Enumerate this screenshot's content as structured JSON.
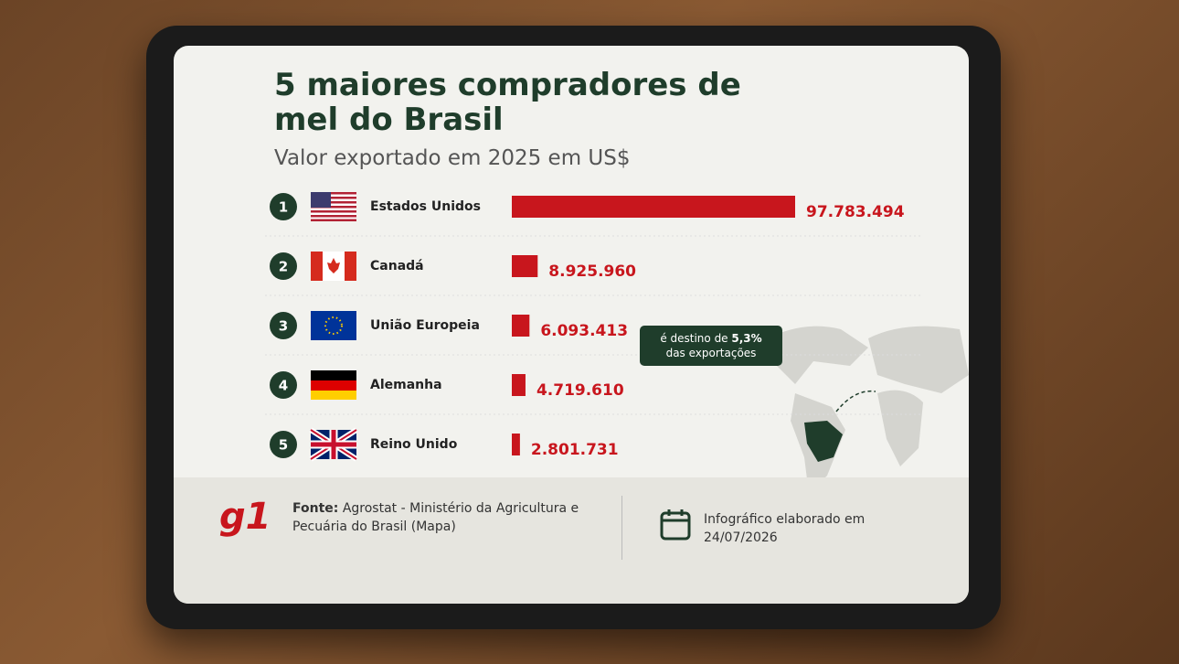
{
  "chart_data": {
    "type": "bar",
    "title": "5 maiores compradores de mel do Brasil",
    "subtitle": "Valor exportado em 2025 em US$",
    "ranks": [
      1,
      2,
      3,
      4,
      5
    ],
    "categories": [
      "Estados Unidos",
      "Canadá",
      "União Europeia",
      "Alemanha",
      "Reino Unido"
    ],
    "values": [
      97783494,
      8925960,
      6093413,
      4719610,
      2801731
    ],
    "value_labels": [
      "97.783.494",
      "8.925.960",
      "6.093.413",
      "4.719.610",
      "2.801.731"
    ],
    "color": "#c8161d",
    "annotation": {
      "text": "é destino de",
      "highlight": "5,3%",
      "text_end": "das exportações"
    },
    "footer": {
      "logo": "g1",
      "source_label": "Fonte:",
      "source": "Agrostat - Ministério da Agricultura e Pecuária do Brasil (Mapa)",
      "credit": "Infográfico elaborado em 24/07/2026"
    }
  }
}
